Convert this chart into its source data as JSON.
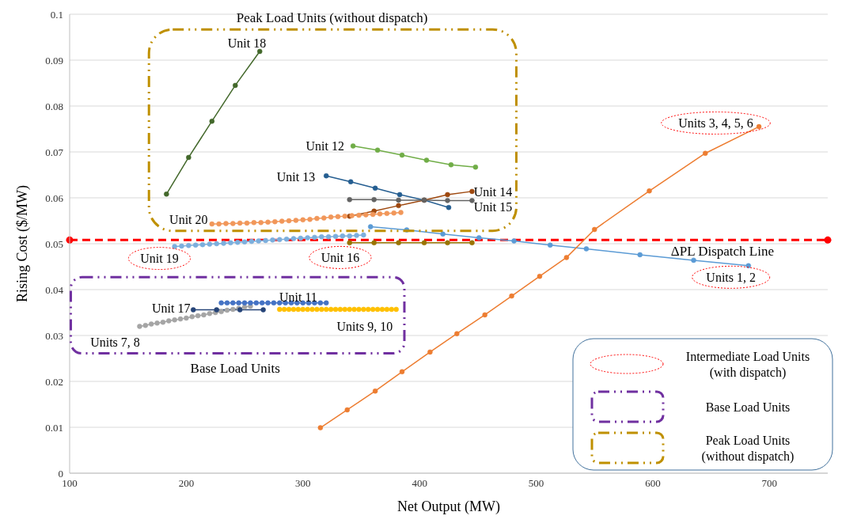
{
  "chart_data": {
    "type": "line",
    "xlabel": "Net Output (MW)",
    "ylabel": "Rising Cost ($/MW)",
    "xlim": [
      100,
      750
    ],
    "xticks": [
      100,
      200,
      300,
      400,
      500,
      600,
      700
    ],
    "ylim": [
      0,
      0.1
    ],
    "yticks": [
      0,
      0.01,
      0.02,
      0.03,
      0.04,
      0.05,
      0.06,
      0.07,
      0.08,
      0.09,
      0.1
    ],
    "grid": "y",
    "marker": "circle",
    "line_style": "solid",
    "series": [
      {
        "name": "Units 1, 2",
        "color": "#5b9bd5",
        "x": [
          358,
          389,
          420,
          451,
          481,
          512,
          543,
          589,
          635,
          682
        ],
        "values": [
          0.0537,
          0.053,
          0.0521,
          0.0513,
          0.0506,
          0.0497,
          0.0489,
          0.0476,
          0.0464,
          0.0452
        ]
      },
      {
        "name": "Units 3, 4, 5, 6",
        "color": "#ed7d31",
        "x": [
          315,
          338,
          362,
          385,
          409,
          432,
          456,
          479,
          503,
          526,
          550,
          597,
          645,
          691
        ],
        "values": [
          0.0099,
          0.0138,
          0.0179,
          0.0221,
          0.0264,
          0.0304,
          0.0345,
          0.0386,
          0.0429,
          0.047,
          0.0531,
          0.0615,
          0.0697,
          0.0755
        ]
      },
      {
        "name": "Units 7, 8",
        "color": "#a5a5a5",
        "x": [
          160,
          165,
          170,
          175,
          180,
          185,
          190,
          195,
          200,
          205,
          210,
          215,
          220,
          225,
          230,
          235,
          240,
          245,
          250,
          255
        ],
        "values": [
          0.032,
          0.0322,
          0.0325,
          0.0327,
          0.0329,
          0.0332,
          0.0334,
          0.0336,
          0.0338,
          0.0341,
          0.0343,
          0.0345,
          0.0348,
          0.035,
          0.0352,
          0.0355,
          0.0357,
          0.0359,
          0.0362,
          0.0364
        ]
      },
      {
        "name": "Units 9, 10",
        "color": "#ffc000",
        "x": [
          280,
          284,
          288,
          292,
          296,
          300,
          304,
          308,
          312,
          316,
          320,
          324,
          328,
          332,
          336,
          340,
          344,
          348,
          352,
          356,
          360,
          364,
          368,
          372,
          376,
          380
        ],
        "values": [
          0.0357,
          0.0357,
          0.0357,
          0.0357,
          0.0357,
          0.0357,
          0.0357,
          0.0357,
          0.0357,
          0.0357,
          0.0357,
          0.0357,
          0.0357,
          0.0357,
          0.0357,
          0.0357,
          0.0357,
          0.0357,
          0.0357,
          0.0357,
          0.0357,
          0.0357,
          0.0357,
          0.0357,
          0.0357,
          0.0357
        ]
      },
      {
        "name": "Unit 11",
        "color": "#4472c4",
        "x": [
          230,
          235,
          240,
          245,
          250,
          255,
          260,
          265,
          270,
          275,
          280,
          285,
          290,
          295,
          300,
          305,
          310,
          315,
          320
        ],
        "values": [
          0.0371,
          0.0371,
          0.0371,
          0.0371,
          0.0371,
          0.0371,
          0.0371,
          0.0371,
          0.0371,
          0.0371,
          0.0371,
          0.0371,
          0.0371,
          0.0371,
          0.0371,
          0.0371,
          0.0371,
          0.0371,
          0.0371
        ]
      },
      {
        "name": "Unit 12",
        "color": "#70ad47",
        "x": [
          343,
          364,
          385,
          406,
          427,
          448
        ],
        "values": [
          0.0713,
          0.0704,
          0.0693,
          0.0682,
          0.0672,
          0.0667
        ]
      },
      {
        "name": "Unit 13",
        "color": "#255e91",
        "x": [
          320,
          341,
          362,
          383,
          404,
          425
        ],
        "values": [
          0.0648,
          0.0635,
          0.0621,
          0.0607,
          0.0595,
          0.0579
        ]
      },
      {
        "name": "Unit 14",
        "color": "#9e480e",
        "x": [
          340,
          361,
          382,
          404,
          424,
          445
        ],
        "values": [
          0.056,
          0.0571,
          0.0583,
          0.0595,
          0.0607,
          0.0614
        ]
      },
      {
        "name": "Unit 15",
        "color": "#636363",
        "x": [
          340,
          361,
          382,
          404,
          424,
          445
        ],
        "values": [
          0.0596,
          0.0596,
          0.0595,
          0.0595,
          0.0594,
          0.0594
        ]
      },
      {
        "name": "Unit 16",
        "color": "#997300",
        "x": [
          340,
          361,
          382,
          404,
          424,
          445
        ],
        "values": [
          0.0502,
          0.0502,
          0.0502,
          0.0502,
          0.0502,
          0.0502
        ]
      },
      {
        "name": "Unit 17",
        "color": "#264478",
        "x": [
          206,
          226,
          246,
          266
        ],
        "values": [
          0.0356,
          0.0356,
          0.0356,
          0.0356
        ]
      },
      {
        "name": "Unit 18",
        "color": "#43682b",
        "x": [
          183,
          202,
          222,
          242,
          263
        ],
        "values": [
          0.0608,
          0.0688,
          0.0767,
          0.0845,
          0.0919
        ]
      },
      {
        "name": "Unit 19",
        "color": "#7cafdd",
        "x": [
          190,
          196,
          202,
          208,
          214,
          220,
          226,
          232,
          238,
          244,
          250,
          256,
          262,
          268,
          274,
          280,
          286,
          292,
          298,
          304,
          310,
          316,
          322,
          328,
          334,
          340,
          346,
          352
        ],
        "values": [
          0.0494,
          0.0495,
          0.0496,
          0.0497,
          0.0498,
          0.0499,
          0.05,
          0.0501,
          0.0502,
          0.0503,
          0.0504,
          0.0505,
          0.0506,
          0.0507,
          0.0508,
          0.0509,
          0.051,
          0.0511,
          0.0512,
          0.0513,
          0.0514,
          0.0515,
          0.0515,
          0.0516,
          0.0517,
          0.0517,
          0.0518,
          0.0519
        ]
      },
      {
        "name": "Unit 20",
        "color": "#f1975a",
        "x": [
          222,
          228,
          234,
          240,
          246,
          252,
          258,
          264,
          270,
          276,
          282,
          288,
          294,
          300,
          306,
          312,
          318,
          324,
          330,
          336,
          342,
          348,
          354,
          360,
          366,
          372,
          378,
          384
        ],
        "values": [
          0.0543,
          0.0543,
          0.0544,
          0.0544,
          0.0545,
          0.0545,
          0.0546,
          0.0546,
          0.0547,
          0.0548,
          0.0549,
          0.055,
          0.0551,
          0.0552,
          0.0553,
          0.0555,
          0.0556,
          0.0558,
          0.0559,
          0.056,
          0.0561,
          0.0562,
          0.0563,
          0.0564,
          0.0565,
          0.0566,
          0.0567,
          0.0568
        ]
      }
    ],
    "ref_lines": [
      {
        "axis": "y",
        "value": 0.0508,
        "label": "ΔPL Dispatch Line",
        "color": "#ff0000",
        "line_style": "dashed"
      }
    ],
    "annotations": [
      "Peak Load Units (without dispatch)",
      "Base Load Units",
      "Intermediate Load Units (with dispatch)",
      "Base Load Units",
      "Peak Load Units (without dispatch)"
    ]
  }
}
